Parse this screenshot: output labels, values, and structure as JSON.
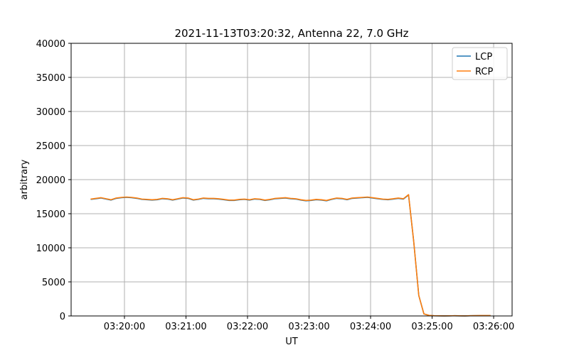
{
  "chart_data": {
    "type": "line",
    "title": "2021-11-13T03:20:32, Antenna 22, 7.0 GHz",
    "xlabel": "UT",
    "ylabel": "arbitrary",
    "xlim": [
      "03:19:08",
      "03:26:18"
    ],
    "ylim": [
      0,
      40000
    ],
    "xticks": [
      "03:20:00",
      "03:21:00",
      "03:22:00",
      "03:23:00",
      "03:24:00",
      "03:25:00",
      "03:26:00"
    ],
    "yticks": [
      0,
      5000,
      10000,
      15000,
      20000,
      25000,
      30000,
      35000,
      40000
    ],
    "grid": true,
    "legend_position": "top-right",
    "x": [
      "03:19:27",
      "03:19:32",
      "03:19:37",
      "03:19:42",
      "03:19:47",
      "03:19:52",
      "03:19:57",
      "03:20:02",
      "03:20:07",
      "03:20:12",
      "03:20:17",
      "03:20:22",
      "03:20:27",
      "03:20:32",
      "03:20:37",
      "03:20:42",
      "03:20:47",
      "03:20:52",
      "03:20:57",
      "03:21:02",
      "03:21:07",
      "03:21:12",
      "03:21:17",
      "03:21:22",
      "03:21:27",
      "03:21:32",
      "03:21:37",
      "03:21:42",
      "03:21:47",
      "03:21:52",
      "03:21:57",
      "03:22:02",
      "03:22:07",
      "03:22:12",
      "03:22:17",
      "03:22:22",
      "03:22:27",
      "03:22:32",
      "03:22:37",
      "03:22:42",
      "03:22:47",
      "03:22:52",
      "03:22:57",
      "03:23:02",
      "03:23:07",
      "03:23:12",
      "03:23:17",
      "03:23:22",
      "03:23:27",
      "03:23:32",
      "03:23:37",
      "03:23:42",
      "03:23:47",
      "03:23:52",
      "03:23:57",
      "03:24:02",
      "03:24:07",
      "03:24:12",
      "03:24:17",
      "03:24:22",
      "03:24:27",
      "03:24:32",
      "03:24:37",
      "03:24:42",
      "03:24:47",
      "03:24:52",
      "03:24:57",
      "03:25:02",
      "03:25:07",
      "03:25:12",
      "03:25:17",
      "03:25:22",
      "03:25:27",
      "03:25:32",
      "03:25:37",
      "03:25:42",
      "03:25:47",
      "03:25:52",
      "03:25:57"
    ],
    "series": [
      {
        "name": "LCP",
        "color": "#1f77b4",
        "values": [
          17100,
          17200,
          17300,
          17150,
          17000,
          17250,
          17350,
          17400,
          17350,
          17250,
          17100,
          17050,
          17000,
          17050,
          17200,
          17150,
          17000,
          17150,
          17300,
          17250,
          17000,
          17100,
          17250,
          17200,
          17200,
          17150,
          17050,
          16950,
          16950,
          17050,
          17100,
          17000,
          17150,
          17100,
          16950,
          17050,
          17200,
          17250,
          17300,
          17200,
          17150,
          17000,
          16900,
          16950,
          17050,
          17000,
          16900,
          17100,
          17250,
          17200,
          17050,
          17250,
          17300,
          17350,
          17400,
          17300,
          17200,
          17100,
          17050,
          17150,
          17250,
          17150,
          17750,
          11000,
          3000,
          300,
          80,
          30,
          20,
          10,
          20,
          30,
          20,
          10,
          30,
          50,
          60,
          60,
          60
        ]
      },
      {
        "name": "RCP",
        "color": "#ff7f0e",
        "values": [
          17150,
          17250,
          17350,
          17200,
          17050,
          17300,
          17400,
          17450,
          17400,
          17300,
          17150,
          17100,
          17050,
          17100,
          17250,
          17200,
          17050,
          17200,
          17350,
          17300,
          17050,
          17150,
          17300,
          17250,
          17250,
          17200,
          17100,
          17000,
          17000,
          17100,
          17150,
          17050,
          17200,
          17150,
          17000,
          17100,
          17250,
          17300,
          17350,
          17250,
          17200,
          17050,
          16950,
          17000,
          17100,
          17050,
          16950,
          17150,
          17300,
          17250,
          17100,
          17300,
          17350,
          17400,
          17450,
          17350,
          17250,
          17150,
          17100,
          17200,
          17300,
          17200,
          17800,
          11000,
          3000,
          300,
          80,
          30,
          20,
          10,
          20,
          30,
          20,
          10,
          30,
          50,
          60,
          60,
          60
        ]
      }
    ]
  }
}
